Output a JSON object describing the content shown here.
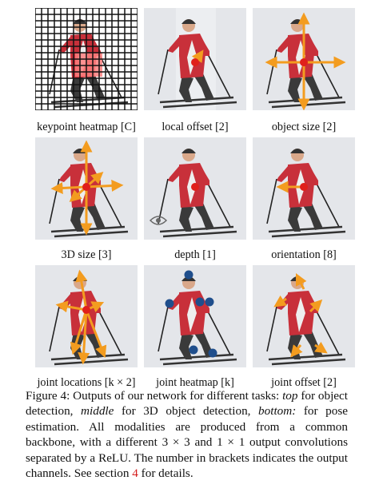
{
  "figure": {
    "panels": [
      {
        "id": "keypoint-heatmap",
        "label": "keypoint heatmap [C]"
      },
      {
        "id": "local-offset",
        "label": "local offset [2]"
      },
      {
        "id": "object-size",
        "label": "object size [2]"
      },
      {
        "id": "3d-size",
        "label": "3D size [3]"
      },
      {
        "id": "depth",
        "label": "depth [1]"
      },
      {
        "id": "orientation",
        "label": "orientation [8]"
      },
      {
        "id": "joint-locations",
        "label": "joint locations [k × 2]"
      },
      {
        "id": "joint-heatmap",
        "label": "joint heatmap [k]"
      },
      {
        "id": "joint-offset",
        "label": "joint offset [2]"
      }
    ],
    "caption": {
      "figure_label": "Figure 4:",
      "text_1": " Outputs of our network for different tasks: ",
      "top": "top",
      "text_2": " for object detection, ",
      "middle": "middle",
      "text_3": " for 3D object detection, ",
      "bottom": "bottom:",
      "text_4": " for pose estimation. All modalities are produced from a common backbone, with a different 3 × 3 and 1 × 1 output convolutions separated by a ReLU. The number in brackets indicates the output channels. See section ",
      "section_ref": "4",
      "text_5": " for details."
    },
    "colors": {
      "arrow": "#f39c1f",
      "center": "#e0201b",
      "joint_dot": "#1f4e8c",
      "heatmap_cell": "#ff8080"
    }
  }
}
